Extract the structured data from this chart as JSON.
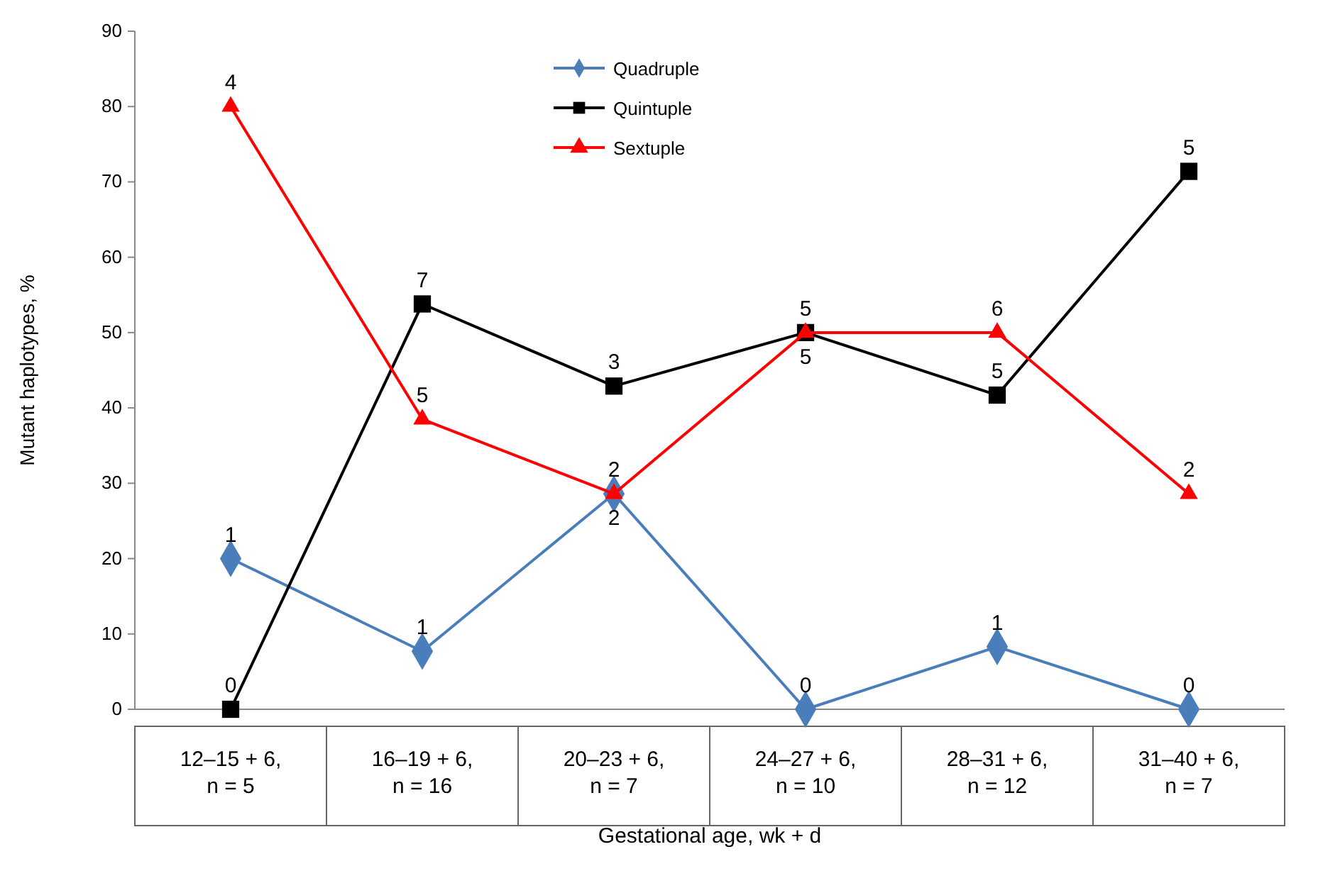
{
  "chart_data": {
    "type": "line",
    "xlabel": "Gestational age, wk + d",
    "ylabel": "Mutant haplotypes, %",
    "categories": [
      "12–15 + 6,\nn = 5",
      "16–19 + 6,\nn = 16",
      "20–23 + 6,\nn = 7",
      "24–27 + 6,\nn = 10",
      "28–31 + 6,\nn = 12",
      "31–40 + 6,\nn = 7"
    ],
    "ylim": [
      0,
      90
    ],
    "yticks": [
      0,
      10,
      20,
      30,
      40,
      50,
      60,
      70,
      80,
      90
    ],
    "grid": false,
    "legend": "top",
    "series": [
      {
        "name": "Quadruple",
        "color": "#4a7ebb",
        "marker": "diamond",
        "values": [
          20,
          7.7,
          28.6,
          0,
          8.3,
          0
        ]
      },
      {
        "name": "Quintuple",
        "color": "#000000",
        "marker": "square",
        "values": [
          0,
          53.8,
          42.9,
          50,
          41.7,
          71.4
        ]
      },
      {
        "name": "Sextuple",
        "color": "#ff0000",
        "marker": "triangle",
        "values": [
          80,
          38.5,
          28.6,
          50,
          50,
          28.6
        ]
      }
    ],
    "annotations": [
      {
        "text": "1",
        "x": "12–15 + 6,\nn = 5",
        "y": 20
      },
      {
        "text": "1",
        "x": "16–19 + 6,\nn = 16",
        "y": 7.7
      },
      {
        "text": "2",
        "x": "20–23 + 6,\nn = 7",
        "y": 28.6
      },
      {
        "text": "0",
        "x": "24–27 + 6,\nn = 10",
        "y": 0
      },
      {
        "text": "1",
        "x": "28–31 + 6,\nn = 12",
        "y": 8.3
      },
      {
        "text": "0",
        "x": "31–40 + 6,\nn = 7",
        "y": 0
      },
      {
        "text": "0",
        "x": "12–15 + 6,\nn = 5",
        "y": 0
      },
      {
        "text": "7",
        "x": "16–19 + 6,\nn = 16",
        "y": 53.8
      },
      {
        "text": "3",
        "x": "20–23 + 6,\nn = 7",
        "y": 42.9
      },
      {
        "text": "5",
        "x": "24–27 + 6,\nn = 10",
        "y": 50
      },
      {
        "text": "5",
        "x": "28–31 + 6,\nn = 12",
        "y": 41.7
      },
      {
        "text": "5",
        "x": "31–40 + 6,\nn = 7",
        "y": 71.4
      },
      {
        "text": "4",
        "x": "12–15 + 6,\nn = 5",
        "y": 80
      },
      {
        "text": "5",
        "x": "16–19 + 6,\nn = 16",
        "y": 38.5
      },
      {
        "text": "2",
        "x": "20–23 + 6,\nn = 7",
        "y": 28.6
      },
      {
        "text": "5",
        "x": "24–27 + 6,\nn = 10",
        "y": 50
      },
      {
        "text": "6",
        "x": "28–31 + 6,\nn = 12",
        "y": 50
      },
      {
        "text": "2",
        "x": "31–40 + 6,\nn = 7",
        "y": 28.6
      }
    ]
  }
}
